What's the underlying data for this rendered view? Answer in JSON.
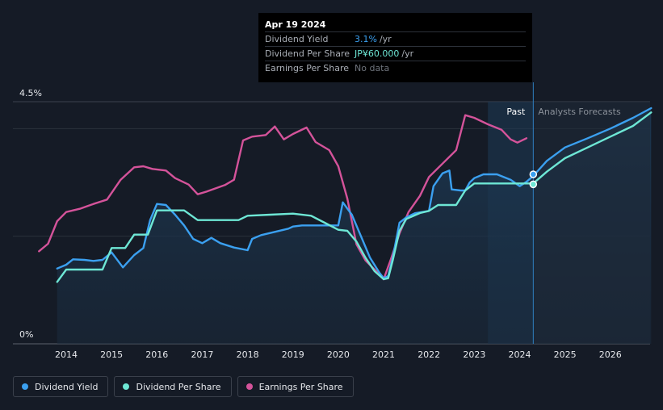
{
  "chart_data": {
    "type": "line",
    "title": "",
    "y_axis": {
      "top_label": "4.5%",
      "bottom_label": "0%",
      "range": [
        0,
        4.5
      ]
    },
    "x_range": [
      2013.2,
      2026.9
    ],
    "x_ticks": [
      "2014",
      "2015",
      "2016",
      "2017",
      "2018",
      "2019",
      "2020",
      "2021",
      "2022",
      "2023",
      "2024",
      "2025",
      "2026"
    ],
    "past_label": "Past",
    "forecast_label": "Analysts Forecasts",
    "past_region_start": 2023.3,
    "forecast_start": 2024.3,
    "colors": {
      "yield": "#3ba0f0",
      "dps": "#6ee7d5",
      "eps": "#d4539a"
    },
    "series": [
      {
        "name": "Dividend Yield",
        "unit": "%",
        "points": [
          [
            2013.8,
            1.4
          ],
          [
            2014.0,
            1.47
          ],
          [
            2014.15,
            1.57
          ],
          [
            2014.4,
            1.56
          ],
          [
            2014.6,
            1.54
          ],
          [
            2014.8,
            1.56
          ],
          [
            2015.0,
            1.7
          ],
          [
            2015.25,
            1.42
          ],
          [
            2015.5,
            1.65
          ],
          [
            2015.7,
            1.78
          ],
          [
            2015.85,
            2.3
          ],
          [
            2016.0,
            2.6
          ],
          [
            2016.2,
            2.58
          ],
          [
            2016.4,
            2.4
          ],
          [
            2016.6,
            2.2
          ],
          [
            2016.8,
            1.95
          ],
          [
            2017.0,
            1.87
          ],
          [
            2017.2,
            1.97
          ],
          [
            2017.4,
            1.87
          ],
          [
            2017.7,
            1.79
          ],
          [
            2018.0,
            1.74
          ],
          [
            2018.1,
            1.95
          ],
          [
            2018.3,
            2.02
          ],
          [
            2018.6,
            2.08
          ],
          [
            2018.9,
            2.14
          ],
          [
            2019.0,
            2.18
          ],
          [
            2019.2,
            2.2
          ],
          [
            2019.6,
            2.2
          ],
          [
            2020.0,
            2.2
          ],
          [
            2020.1,
            2.63
          ],
          [
            2020.3,
            2.4
          ],
          [
            2020.5,
            2.0
          ],
          [
            2020.7,
            1.6
          ],
          [
            2020.9,
            1.33
          ],
          [
            2021.0,
            1.22
          ],
          [
            2021.1,
            1.26
          ],
          [
            2021.2,
            1.6
          ],
          [
            2021.35,
            2.25
          ],
          [
            2021.5,
            2.35
          ],
          [
            2021.7,
            2.43
          ],
          [
            2022.0,
            2.47
          ],
          [
            2022.1,
            2.93
          ],
          [
            2022.3,
            3.17
          ],
          [
            2022.45,
            3.22
          ],
          [
            2022.5,
            2.87
          ],
          [
            2022.7,
            2.85
          ],
          [
            2022.8,
            2.85
          ],
          [
            2022.9,
            3.0
          ],
          [
            2023.0,
            3.08
          ],
          [
            2023.2,
            3.15
          ],
          [
            2023.5,
            3.15
          ],
          [
            2023.8,
            3.05
          ],
          [
            2024.0,
            2.93
          ],
          [
            2024.15,
            3.01
          ],
          [
            2024.3,
            3.12
          ],
          [
            2024.6,
            3.4
          ],
          [
            2025.0,
            3.65
          ],
          [
            2025.5,
            3.82
          ],
          [
            2026.0,
            4.0
          ],
          [
            2026.5,
            4.2
          ],
          [
            2026.9,
            4.38
          ]
        ]
      },
      {
        "name": "Dividend Per Share",
        "unit": "JP¥",
        "points": [
          [
            2013.8,
            1.15
          ],
          [
            2014.0,
            1.38
          ],
          [
            2014.2,
            1.38
          ],
          [
            2014.5,
            1.38
          ],
          [
            2014.8,
            1.38
          ],
          [
            2015.0,
            1.78
          ],
          [
            2015.3,
            1.78
          ],
          [
            2015.5,
            2.03
          ],
          [
            2015.8,
            2.03
          ],
          [
            2016.0,
            2.48
          ],
          [
            2016.3,
            2.48
          ],
          [
            2016.6,
            2.48
          ],
          [
            2016.9,
            2.3
          ],
          [
            2017.2,
            2.3
          ],
          [
            2017.5,
            2.3
          ],
          [
            2017.8,
            2.3
          ],
          [
            2018.0,
            2.38
          ],
          [
            2018.5,
            2.4
          ],
          [
            2019.0,
            2.42
          ],
          [
            2019.4,
            2.38
          ],
          [
            2019.7,
            2.25
          ],
          [
            2020.0,
            2.12
          ],
          [
            2020.2,
            2.1
          ],
          [
            2020.4,
            1.9
          ],
          [
            2020.6,
            1.6
          ],
          [
            2020.8,
            1.35
          ],
          [
            2021.0,
            1.2
          ],
          [
            2021.1,
            1.22
          ],
          [
            2021.2,
            1.55
          ],
          [
            2021.35,
            2.1
          ],
          [
            2021.5,
            2.32
          ],
          [
            2021.8,
            2.43
          ],
          [
            2022.0,
            2.47
          ],
          [
            2022.2,
            2.58
          ],
          [
            2022.4,
            2.58
          ],
          [
            2022.6,
            2.58
          ],
          [
            2022.8,
            2.85
          ],
          [
            2023.0,
            2.98
          ],
          [
            2023.5,
            2.98
          ],
          [
            2024.0,
            2.98
          ],
          [
            2024.3,
            2.98
          ],
          [
            2024.6,
            3.2
          ],
          [
            2025.0,
            3.45
          ],
          [
            2025.5,
            3.65
          ],
          [
            2026.0,
            3.85
          ],
          [
            2026.5,
            4.05
          ],
          [
            2026.9,
            4.3
          ]
        ]
      },
      {
        "name": "Earnings Per Share",
        "unit": "JP¥",
        "points": [
          [
            2013.4,
            1.72
          ],
          [
            2013.6,
            1.86
          ],
          [
            2013.8,
            2.28
          ],
          [
            2014.0,
            2.45
          ],
          [
            2014.3,
            2.51
          ],
          [
            2014.6,
            2.6
          ],
          [
            2014.9,
            2.68
          ],
          [
            2015.2,
            3.05
          ],
          [
            2015.5,
            3.28
          ],
          [
            2015.7,
            3.3
          ],
          [
            2015.9,
            3.25
          ],
          [
            2016.2,
            3.22
          ],
          [
            2016.4,
            3.08
          ],
          [
            2016.7,
            2.96
          ],
          [
            2016.9,
            2.78
          ],
          [
            2017.1,
            2.83
          ],
          [
            2017.5,
            2.95
          ],
          [
            2017.7,
            3.05
          ],
          [
            2017.9,
            3.78
          ],
          [
            2018.1,
            3.85
          ],
          [
            2018.4,
            3.88
          ],
          [
            2018.6,
            4.04
          ],
          [
            2018.8,
            3.8
          ],
          [
            2019.0,
            3.9
          ],
          [
            2019.3,
            4.02
          ],
          [
            2019.5,
            3.75
          ],
          [
            2019.8,
            3.6
          ],
          [
            2020.0,
            3.3
          ],
          [
            2020.2,
            2.7
          ],
          [
            2020.4,
            1.85
          ],
          [
            2020.6,
            1.55
          ],
          [
            2020.8,
            1.38
          ],
          [
            2021.0,
            1.2
          ],
          [
            2021.15,
            1.55
          ],
          [
            2021.35,
            2.05
          ],
          [
            2021.55,
            2.45
          ],
          [
            2021.8,
            2.75
          ],
          [
            2022.0,
            3.1
          ],
          [
            2022.3,
            3.35
          ],
          [
            2022.6,
            3.6
          ],
          [
            2022.8,
            4.25
          ],
          [
            2023.0,
            4.2
          ],
          [
            2023.3,
            4.08
          ],
          [
            2023.6,
            3.98
          ],
          [
            2023.8,
            3.8
          ],
          [
            2023.95,
            3.74
          ],
          [
            2024.15,
            3.82
          ]
        ]
      }
    ]
  },
  "tooltip": {
    "date": "Apr 19 2024",
    "rows": [
      {
        "label": "Dividend Yield",
        "value": "3.1%",
        "unit": "/yr"
      },
      {
        "label": "Dividend Per Share",
        "value": "JP¥60.000",
        "unit": "/yr"
      },
      {
        "label": "Earnings Per Share",
        "value": "No data",
        "unit": ""
      }
    ]
  },
  "legend": [
    {
      "label": "Dividend Yield",
      "color": "#3ba0f0"
    },
    {
      "label": "Dividend Per Share",
      "color": "#6ee7d5"
    },
    {
      "label": "Earnings Per Share",
      "color": "#d4539a"
    }
  ]
}
